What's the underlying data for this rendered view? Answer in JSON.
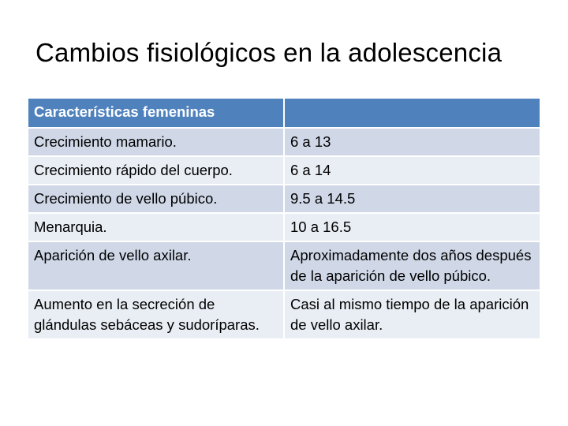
{
  "title": "Cambios fisiológicos en la adolescencia",
  "table": {
    "headers": [
      "Características femeninas",
      ""
    ],
    "rows": [
      [
        "Crecimiento mamario.",
        "6 a 13"
      ],
      [
        "Crecimiento rápido del cuerpo.",
        "6 a 14"
      ],
      [
        "Crecimiento de vello púbico.",
        "9.5 a 14.5"
      ],
      [
        "Menarquia.",
        "10 a 16.5"
      ],
      [
        "Aparición de vello axilar.",
        "Aproximadamente dos años después de la aparición de vello púbico."
      ],
      [
        "Aumento en la secreción de glándulas sebáceas y sudoríparas.",
        "Casi al mismo tiempo de la aparición de vello axilar."
      ]
    ]
  },
  "colors": {
    "header": "#4f81bd",
    "row_dark": "#d0d8e8",
    "row_light": "#e9edf4"
  }
}
